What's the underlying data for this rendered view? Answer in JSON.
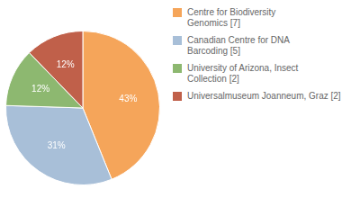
{
  "chart_data": {
    "type": "pie",
    "categories": [
      "Centre for Biodiversity\nGenomics [7]",
      "Canadian Centre for DNA\nBarcoding [5]",
      "University of Arizona, Insect\nCollection [2]",
      "Universalmuseum Joanneum, Graz [2]"
    ],
    "values": [
      43,
      31,
      12,
      12
    ],
    "value_labels": [
      "43%",
      "31%",
      "12%",
      "12%"
    ],
    "colors": [
      "#F5A55A",
      "#A8BFD8",
      "#8DB870",
      "#C0604A"
    ],
    "data_labels": true,
    "legend": "upper right"
  }
}
